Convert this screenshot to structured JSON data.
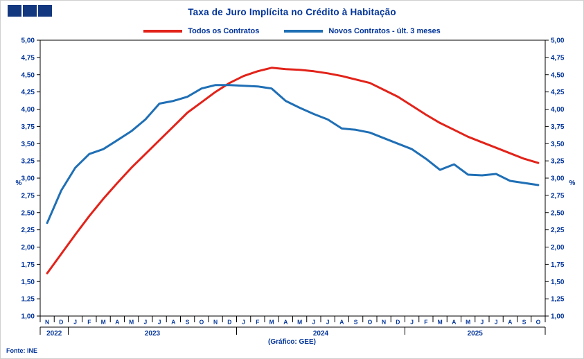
{
  "header": {
    "title": "Taxa de Juro Implícita no Crédito à Habitação"
  },
  "legend": [
    {
      "label": "Todos os Contratos",
      "color": "#e2231a"
    },
    {
      "label": "Novos Contratos - últ. 3 meses",
      "color": "#1f6fb5"
    }
  ],
  "footer": {
    "source": "Fonte: INE",
    "credit": "(Gráfico: GEE)"
  },
  "colors": {
    "navy": "#003399",
    "logo": "#14387f",
    "series_red": "#e2231a",
    "series_blue": "#1f6fb5",
    "axis_line": "#000000"
  },
  "axis": {
    "unit_label": "%",
    "y_min": 1.0,
    "y_max": 5.0,
    "y_step": 0.25
  },
  "chart_data": {
    "type": "line",
    "title": "Taxa de Juro Implícita no Crédito à Habitação",
    "ylabel": "%",
    "ylim": [
      1.0,
      5.0
    ],
    "grid": false,
    "legend_position": "top-center",
    "y_tick_labels": [
      "1,00",
      "1,25",
      "1,50",
      "1,75",
      "2,00",
      "2,25",
      "2,50",
      "2,75",
      "3,00",
      "3,25",
      "3,50",
      "3,75",
      "4,00",
      "4,25",
      "4,50",
      "4,75",
      "5,00"
    ],
    "x_months": [
      "N",
      "D",
      "J",
      "F",
      "M",
      "A",
      "M",
      "J",
      "J",
      "A",
      "S",
      "O",
      "N",
      "D",
      "J",
      "F",
      "M",
      "A",
      "M",
      "J",
      "J",
      "A",
      "S",
      "O",
      "N",
      "D",
      "J",
      "F",
      "M",
      "A",
      "M",
      "J",
      "J",
      "A",
      "S",
      "O"
    ],
    "x_years": [
      {
        "label": "2022",
        "span": [
          0,
          1
        ]
      },
      {
        "label": "2023",
        "span": [
          2,
          13
        ]
      },
      {
        "label": "2024",
        "span": [
          14,
          25
        ]
      },
      {
        "label": "2025",
        "span": [
          26,
          35
        ]
      }
    ],
    "series": [
      {
        "name": "Todos os Contratos",
        "color": "#e2231a",
        "values": [
          1.62,
          1.9,
          2.18,
          2.45,
          2.7,
          2.93,
          3.15,
          3.35,
          3.55,
          3.75,
          3.95,
          4.1,
          4.25,
          4.38,
          4.48,
          4.55,
          4.6,
          4.58,
          4.57,
          4.55,
          4.52,
          4.48,
          4.43,
          4.38,
          4.28,
          4.18,
          4.05,
          3.92,
          3.8,
          3.7,
          3.6,
          3.52,
          3.44,
          3.36,
          3.28,
          3.22
        ]
      },
      {
        "name": "Novos Contratos - últ. 3 meses",
        "color": "#1f6fb5",
        "values": [
          2.35,
          2.82,
          3.15,
          3.35,
          3.42,
          3.55,
          3.68,
          3.85,
          4.08,
          4.12,
          4.18,
          4.3,
          4.35,
          4.35,
          4.34,
          4.33,
          4.3,
          4.12,
          4.02,
          3.93,
          3.85,
          3.72,
          3.7,
          3.66,
          3.58,
          3.5,
          3.42,
          3.28,
          3.12,
          3.2,
          3.05,
          3.04,
          3.06,
          2.96,
          2.93,
          2.9
        ]
      }
    ]
  }
}
